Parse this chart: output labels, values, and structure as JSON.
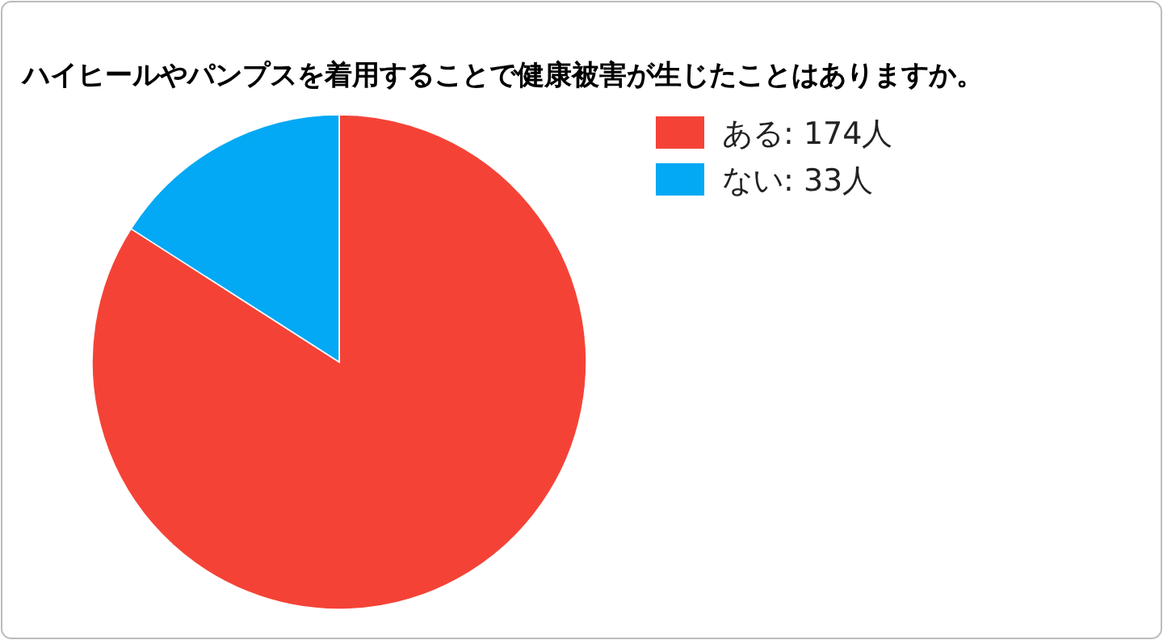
{
  "chart_data": {
    "type": "pie",
    "title": "ハイヒールやパンプスを着用することで健康被害が生じたことはありますか。",
    "categories": [
      "ある",
      "ない"
    ],
    "values": [
      174,
      33
    ],
    "value_labels": [
      "174人",
      "33人"
    ],
    "colors": [
      "#f44336",
      "#03a9f4"
    ],
    "legend": "top right"
  }
}
